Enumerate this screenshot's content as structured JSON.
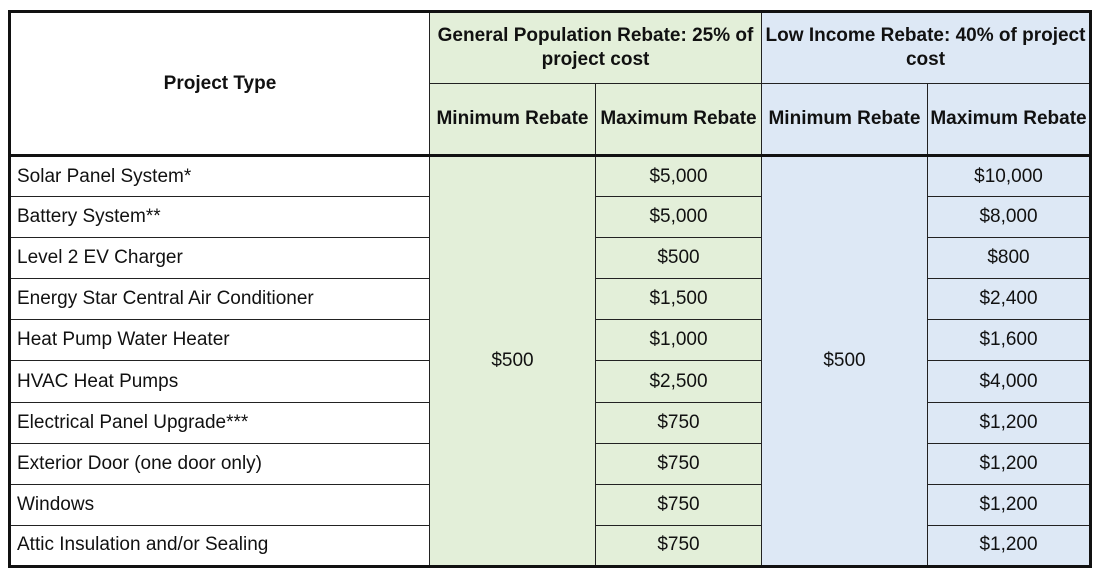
{
  "header": {
    "project_type": "Project Type",
    "general_group": "General Population Rebate: 25% of project cost",
    "low_income_group": "Low Income Rebate: 40% of project cost",
    "gp_min": "Minimum Rebate",
    "gp_max": "Maximum Rebate",
    "li_min": "Minimum Rebate",
    "li_max": "Maximum Rebate"
  },
  "general_min_rebate": "$500",
  "low_income_min_rebate": "$500",
  "rows": [
    {
      "type": "Solar Panel System*",
      "gp_max": "$5,000",
      "li_max": "$10,000"
    },
    {
      "type": "Battery System**",
      "gp_max": "$5,000",
      "li_max": "$8,000"
    },
    {
      "type": "Level 2 EV Charger",
      "gp_max": "$500",
      "li_max": "$800"
    },
    {
      "type": "Energy Star Central Air Conditioner",
      "gp_max": "$1,500",
      "li_max": "$2,400"
    },
    {
      "type": "Heat Pump Water Heater",
      "gp_max": "$1,000",
      "li_max": "$1,600"
    },
    {
      "type": "HVAC Heat Pumps",
      "gp_max": "$2,500",
      "li_max": "$4,000"
    },
    {
      "type": "Electrical Panel Upgrade***",
      "gp_max": "$750",
      "li_max": "$1,200"
    },
    {
      "type": "Exterior Door (one door only)",
      "gp_max": "$750",
      "li_max": "$1,200"
    },
    {
      "type": "Windows",
      "gp_max": "$750",
      "li_max": "$1,200"
    },
    {
      "type": "Attic Insulation and/or Sealing",
      "gp_max": "$750",
      "li_max": "$1,200"
    }
  ],
  "colors": {
    "general_fill": "#e3efd9",
    "low_income_fill": "#dde8f5",
    "border": "#111111"
  }
}
